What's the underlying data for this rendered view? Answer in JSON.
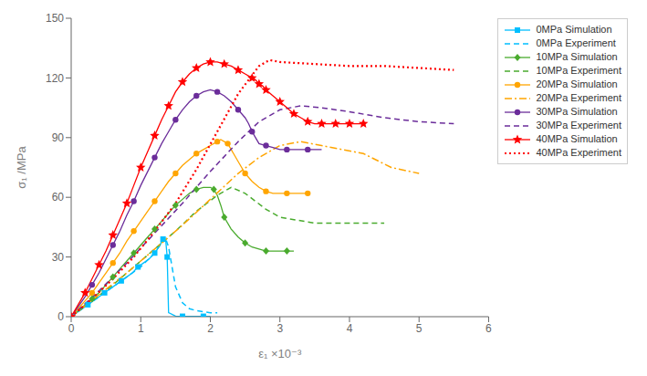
{
  "chart_data": {
    "type": "line",
    "xlabel": "ε₁ ×10⁻³",
    "ylabel": "σ₁ /MPa",
    "xlim": [
      0,
      6
    ],
    "ylim": [
      0,
      150
    ],
    "xticks": [
      0,
      1,
      2,
      3,
      4,
      5,
      6
    ],
    "yticks": [
      0,
      30,
      60,
      90,
      120,
      150
    ],
    "grid": false,
    "legend": "upper right",
    "series": [
      {
        "name": "0MPa Simulation",
        "color": "#00BFFF",
        "line_style": "solid",
        "marker": "square",
        "x": [
          0,
          0.08,
          0.16,
          0.24,
          0.32,
          0.4,
          0.48,
          0.56,
          0.64,
          0.72,
          0.8,
          0.88,
          0.96,
          1.04,
          1.12,
          1.2,
          1.28,
          1.3,
          1.32,
          1.34,
          1.36,
          1.38,
          1.4,
          1.5,
          1.6,
          1.7,
          1.8,
          1.9,
          2.0
        ],
        "values": [
          0,
          2,
          4,
          6,
          8,
          10,
          12,
          14,
          16,
          18,
          20,
          22,
          25,
          27,
          29,
          32,
          36,
          38,
          39,
          39,
          38,
          30,
          2,
          0.3,
          0.2,
          0.2,
          0.2,
          0.2,
          0.2
        ]
      },
      {
        "name": "0MPa Experiment",
        "color": "#00BFFF",
        "line_style": "dashed",
        "x": [
          0,
          0.2,
          0.4,
          0.6,
          0.8,
          1.0,
          1.2,
          1.35,
          1.4,
          1.5,
          1.6,
          1.7,
          1.8,
          1.9,
          2.0,
          2.1
        ],
        "values": [
          0,
          5,
          10,
          15,
          20,
          25,
          32,
          40,
          35,
          15,
          7,
          4,
          3,
          2.5,
          2,
          2
        ]
      },
      {
        "name": "10MPa Simulation",
        "color": "#4aab2e",
        "line_style": "solid",
        "marker": "diamond",
        "x": [
          0,
          0.1,
          0.2,
          0.3,
          0.4,
          0.5,
          0.6,
          0.7,
          0.8,
          0.9,
          1.0,
          1.1,
          1.2,
          1.3,
          1.4,
          1.5,
          1.6,
          1.7,
          1.8,
          1.9,
          2.0,
          2.05,
          2.1,
          2.15,
          2.2,
          2.3,
          2.4,
          2.5,
          2.6,
          2.7,
          2.8,
          2.9,
          3.0,
          3.1,
          3.2
        ],
        "values": [
          0,
          3,
          6,
          9,
          12,
          16,
          20,
          24,
          28,
          32,
          36,
          40,
          44,
          48,
          52,
          56,
          59,
          62,
          64,
          65,
          65,
          64,
          61,
          56,
          50,
          44,
          40,
          37,
          35,
          34,
          33,
          33,
          33,
          33,
          33
        ]
      },
      {
        "name": "10MPa Experiment",
        "color": "#4aab2e",
        "line_style": "dashed",
        "x": [
          0,
          0.3,
          0.6,
          0.9,
          1.2,
          1.5,
          1.8,
          2.1,
          2.3,
          2.5,
          2.8,
          3.0,
          3.5,
          4.0,
          4.5
        ],
        "values": [
          0,
          8,
          16,
          25,
          34,
          43,
          53,
          61,
          65,
          62,
          54,
          50,
          47,
          47,
          47
        ]
      },
      {
        "name": "20MPa Simulation",
        "color": "#FFA500",
        "line_style": "solid",
        "marker": "circle",
        "x": [
          0,
          0.1,
          0.2,
          0.3,
          0.4,
          0.5,
          0.6,
          0.7,
          0.8,
          0.9,
          1.0,
          1.1,
          1.2,
          1.3,
          1.4,
          1.5,
          1.6,
          1.7,
          1.8,
          1.9,
          2.0,
          2.1,
          2.15,
          2.2,
          2.25,
          2.3,
          2.4,
          2.5,
          2.6,
          2.7,
          2.8,
          2.9,
          3.0,
          3.1,
          3.2,
          3.3,
          3.4
        ],
        "values": [
          0,
          4,
          8,
          12,
          17,
          22,
          27,
          32,
          38,
          43,
          48,
          53,
          58,
          63,
          68,
          72,
          76,
          79,
          82,
          84,
          86,
          88,
          89,
          88,
          87,
          84,
          78,
          72,
          68,
          65,
          63,
          62,
          62,
          62,
          62,
          62,
          62
        ]
      },
      {
        "name": "20MPa Experiment",
        "color": "#FFA500",
        "line_style": "dashdot",
        "x": [
          0,
          0.4,
          0.8,
          1.2,
          1.6,
          2.0,
          2.4,
          2.7,
          3.0,
          3.3,
          3.6,
          3.9,
          4.2,
          4.6,
          5.0
        ],
        "values": [
          0,
          11,
          22,
          34,
          46,
          59,
          72,
          80,
          86,
          88,
          86,
          84,
          82,
          75,
          72
        ]
      },
      {
        "name": "30MPa Simulation",
        "color": "#6B2D9A",
        "line_style": "solid",
        "marker": "circle",
        "x": [
          0,
          0.1,
          0.2,
          0.3,
          0.4,
          0.5,
          0.6,
          0.7,
          0.8,
          0.9,
          1.0,
          1.1,
          1.2,
          1.3,
          1.4,
          1.5,
          1.6,
          1.7,
          1.8,
          1.9,
          2.0,
          2.1,
          2.2,
          2.3,
          2.4,
          2.5,
          2.55,
          2.6,
          2.65,
          2.7,
          2.8,
          2.9,
          3.0,
          3.1,
          3.2,
          3.3,
          3.4,
          3.5,
          3.6
        ],
        "values": [
          0,
          5,
          10,
          16,
          22,
          29,
          36,
          43,
          51,
          58,
          66,
          73,
          80,
          87,
          93,
          99,
          104,
          108,
          111,
          113,
          114,
          113,
          111,
          108,
          104,
          100,
          97,
          93,
          90,
          87,
          86,
          85,
          84,
          84,
          84,
          84,
          84,
          84,
          84
        ]
      },
      {
        "name": "30MPa Experiment",
        "color": "#6B2D9A",
        "line_style": "dashed",
        "x": [
          0,
          0.4,
          0.8,
          1.2,
          1.6,
          2.0,
          2.4,
          2.7,
          3.0,
          3.3,
          3.6,
          4.0,
          4.5,
          5.0,
          5.5
        ],
        "values": [
          0,
          13,
          27,
          42,
          57,
          73,
          88,
          98,
          104,
          106,
          105,
          103,
          100,
          98,
          97
        ]
      },
      {
        "name": "40MPa Simulation",
        "color": "#FF0000",
        "line_style": "solid",
        "marker": "star",
        "x": [
          0,
          0.1,
          0.2,
          0.3,
          0.4,
          0.5,
          0.6,
          0.7,
          0.8,
          0.9,
          1.0,
          1.1,
          1.2,
          1.3,
          1.4,
          1.5,
          1.6,
          1.7,
          1.8,
          1.9,
          2.0,
          2.1,
          2.2,
          2.3,
          2.4,
          2.5,
          2.6,
          2.65,
          2.7,
          2.75,
          2.8,
          2.9,
          3.0,
          3.1,
          3.2,
          3.3,
          3.4,
          3.5,
          3.6,
          3.7,
          3.8,
          3.9,
          4.0,
          4.1,
          4.2
        ],
        "values": [
          0,
          6,
          12,
          19,
          26,
          33,
          41,
          49,
          57,
          66,
          75,
          83,
          91,
          99,
          106,
          113,
          118,
          122,
          125,
          127,
          128,
          128,
          127,
          126,
          124,
          122,
          120,
          119,
          117,
          116,
          114,
          111,
          108,
          105,
          102,
          100,
          98,
          97,
          97,
          97,
          97,
          97,
          97,
          97,
          97
        ]
      },
      {
        "name": "40MPa Experiment",
        "color": "#FF0000",
        "line_style": "dotted",
        "x": [
          0,
          0.3,
          0.6,
          0.9,
          1.2,
          1.5,
          1.8,
          2.1,
          2.4,
          2.7,
          2.85,
          3.0,
          3.5,
          4.0,
          4.5,
          5.0,
          5.5
        ],
        "values": [
          0,
          9,
          19,
          30,
          43,
          57,
          74,
          93,
          112,
          126,
          129,
          128,
          127,
          126,
          126,
          125,
          124
        ]
      }
    ]
  }
}
